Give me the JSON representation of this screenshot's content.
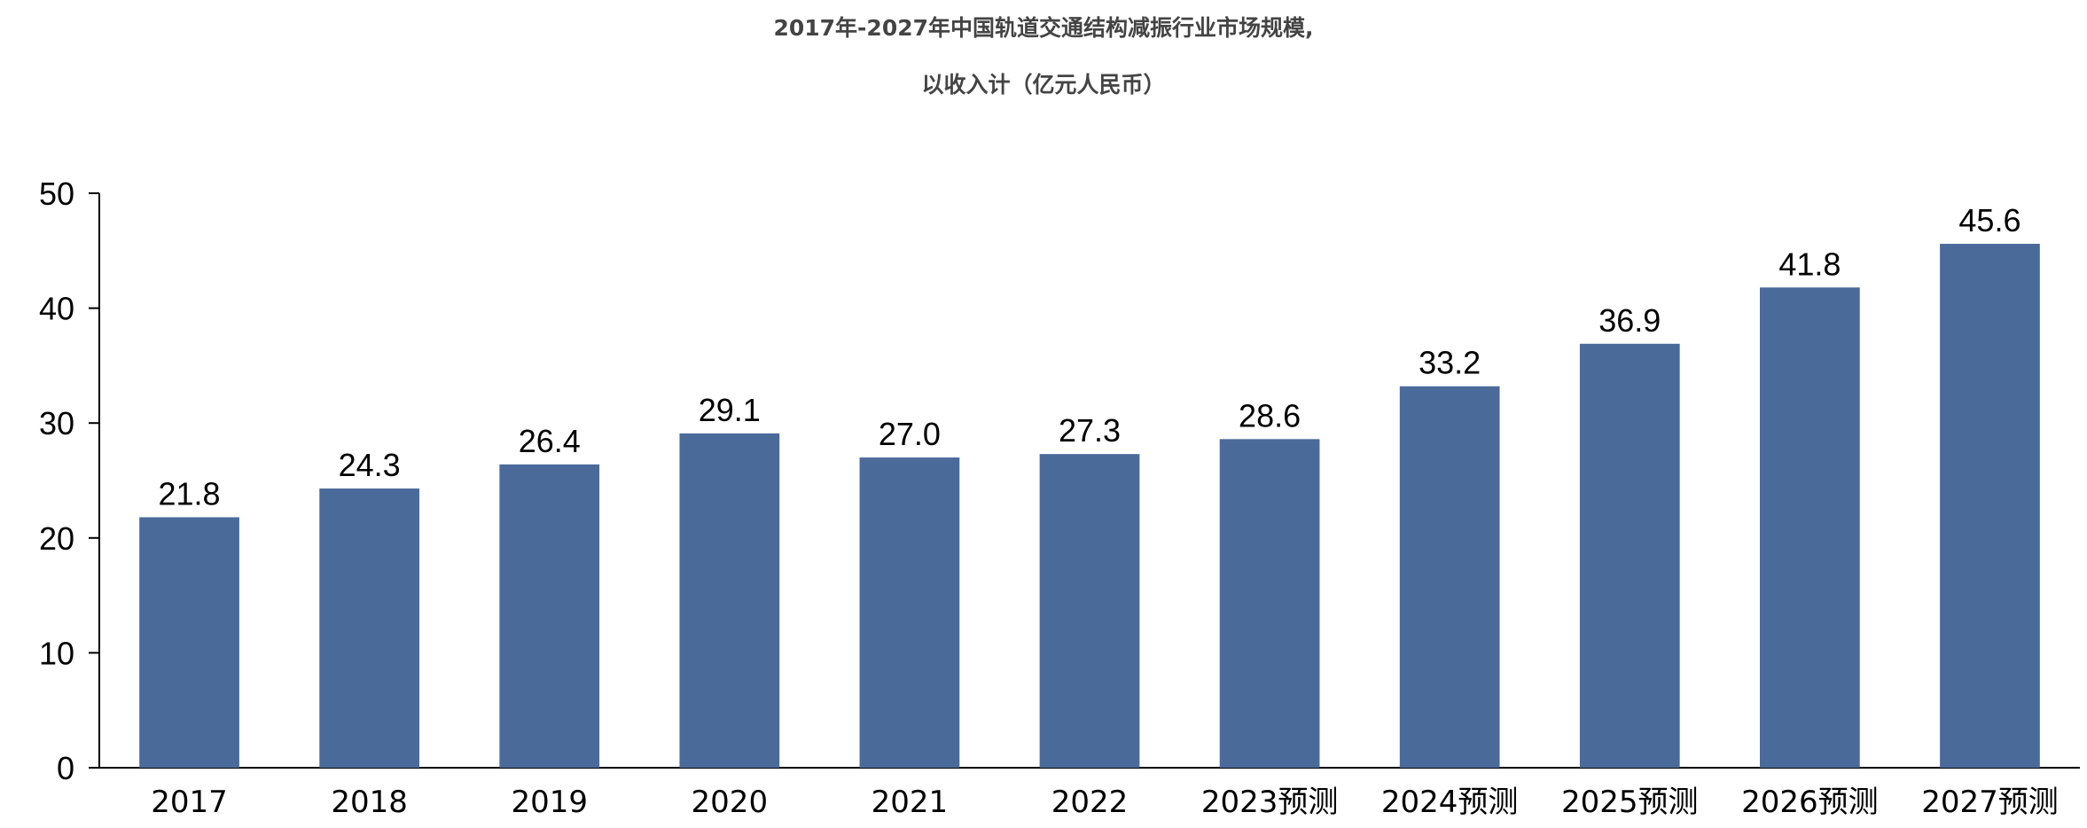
{
  "title_line1": "2017年-2027年中国轨道交通结构减振行业市场规模,",
  "title_line2": "以收入计（亿元人民币）",
  "chart_data": {
    "type": "bar",
    "title": "2017年-2027年中国轨道交通结构减振行业市场规模, 以收入计（亿元人民币）",
    "categories": [
      "2017",
      "2018",
      "2019",
      "2020",
      "2021",
      "2022",
      "2023预测",
      "2024预测",
      "2025预测",
      "2026预测",
      "2027预测"
    ],
    "values": [
      21.8,
      24.3,
      26.4,
      29.1,
      27.0,
      27.3,
      28.6,
      33.2,
      36.9,
      41.8,
      45.6
    ],
    "value_labels": [
      "21.8",
      "24.3",
      "26.4",
      "29.1",
      "27.0",
      "27.3",
      "28.6",
      "33.2",
      "36.9",
      "41.8",
      "45.6"
    ],
    "yticks": [
      "0",
      "10",
      "20",
      "30",
      "40",
      "50"
    ],
    "ylim": [
      0,
      50
    ],
    "xlabel": "",
    "ylabel": "",
    "grid": false,
    "bar_color": "#4a6a9a"
  }
}
